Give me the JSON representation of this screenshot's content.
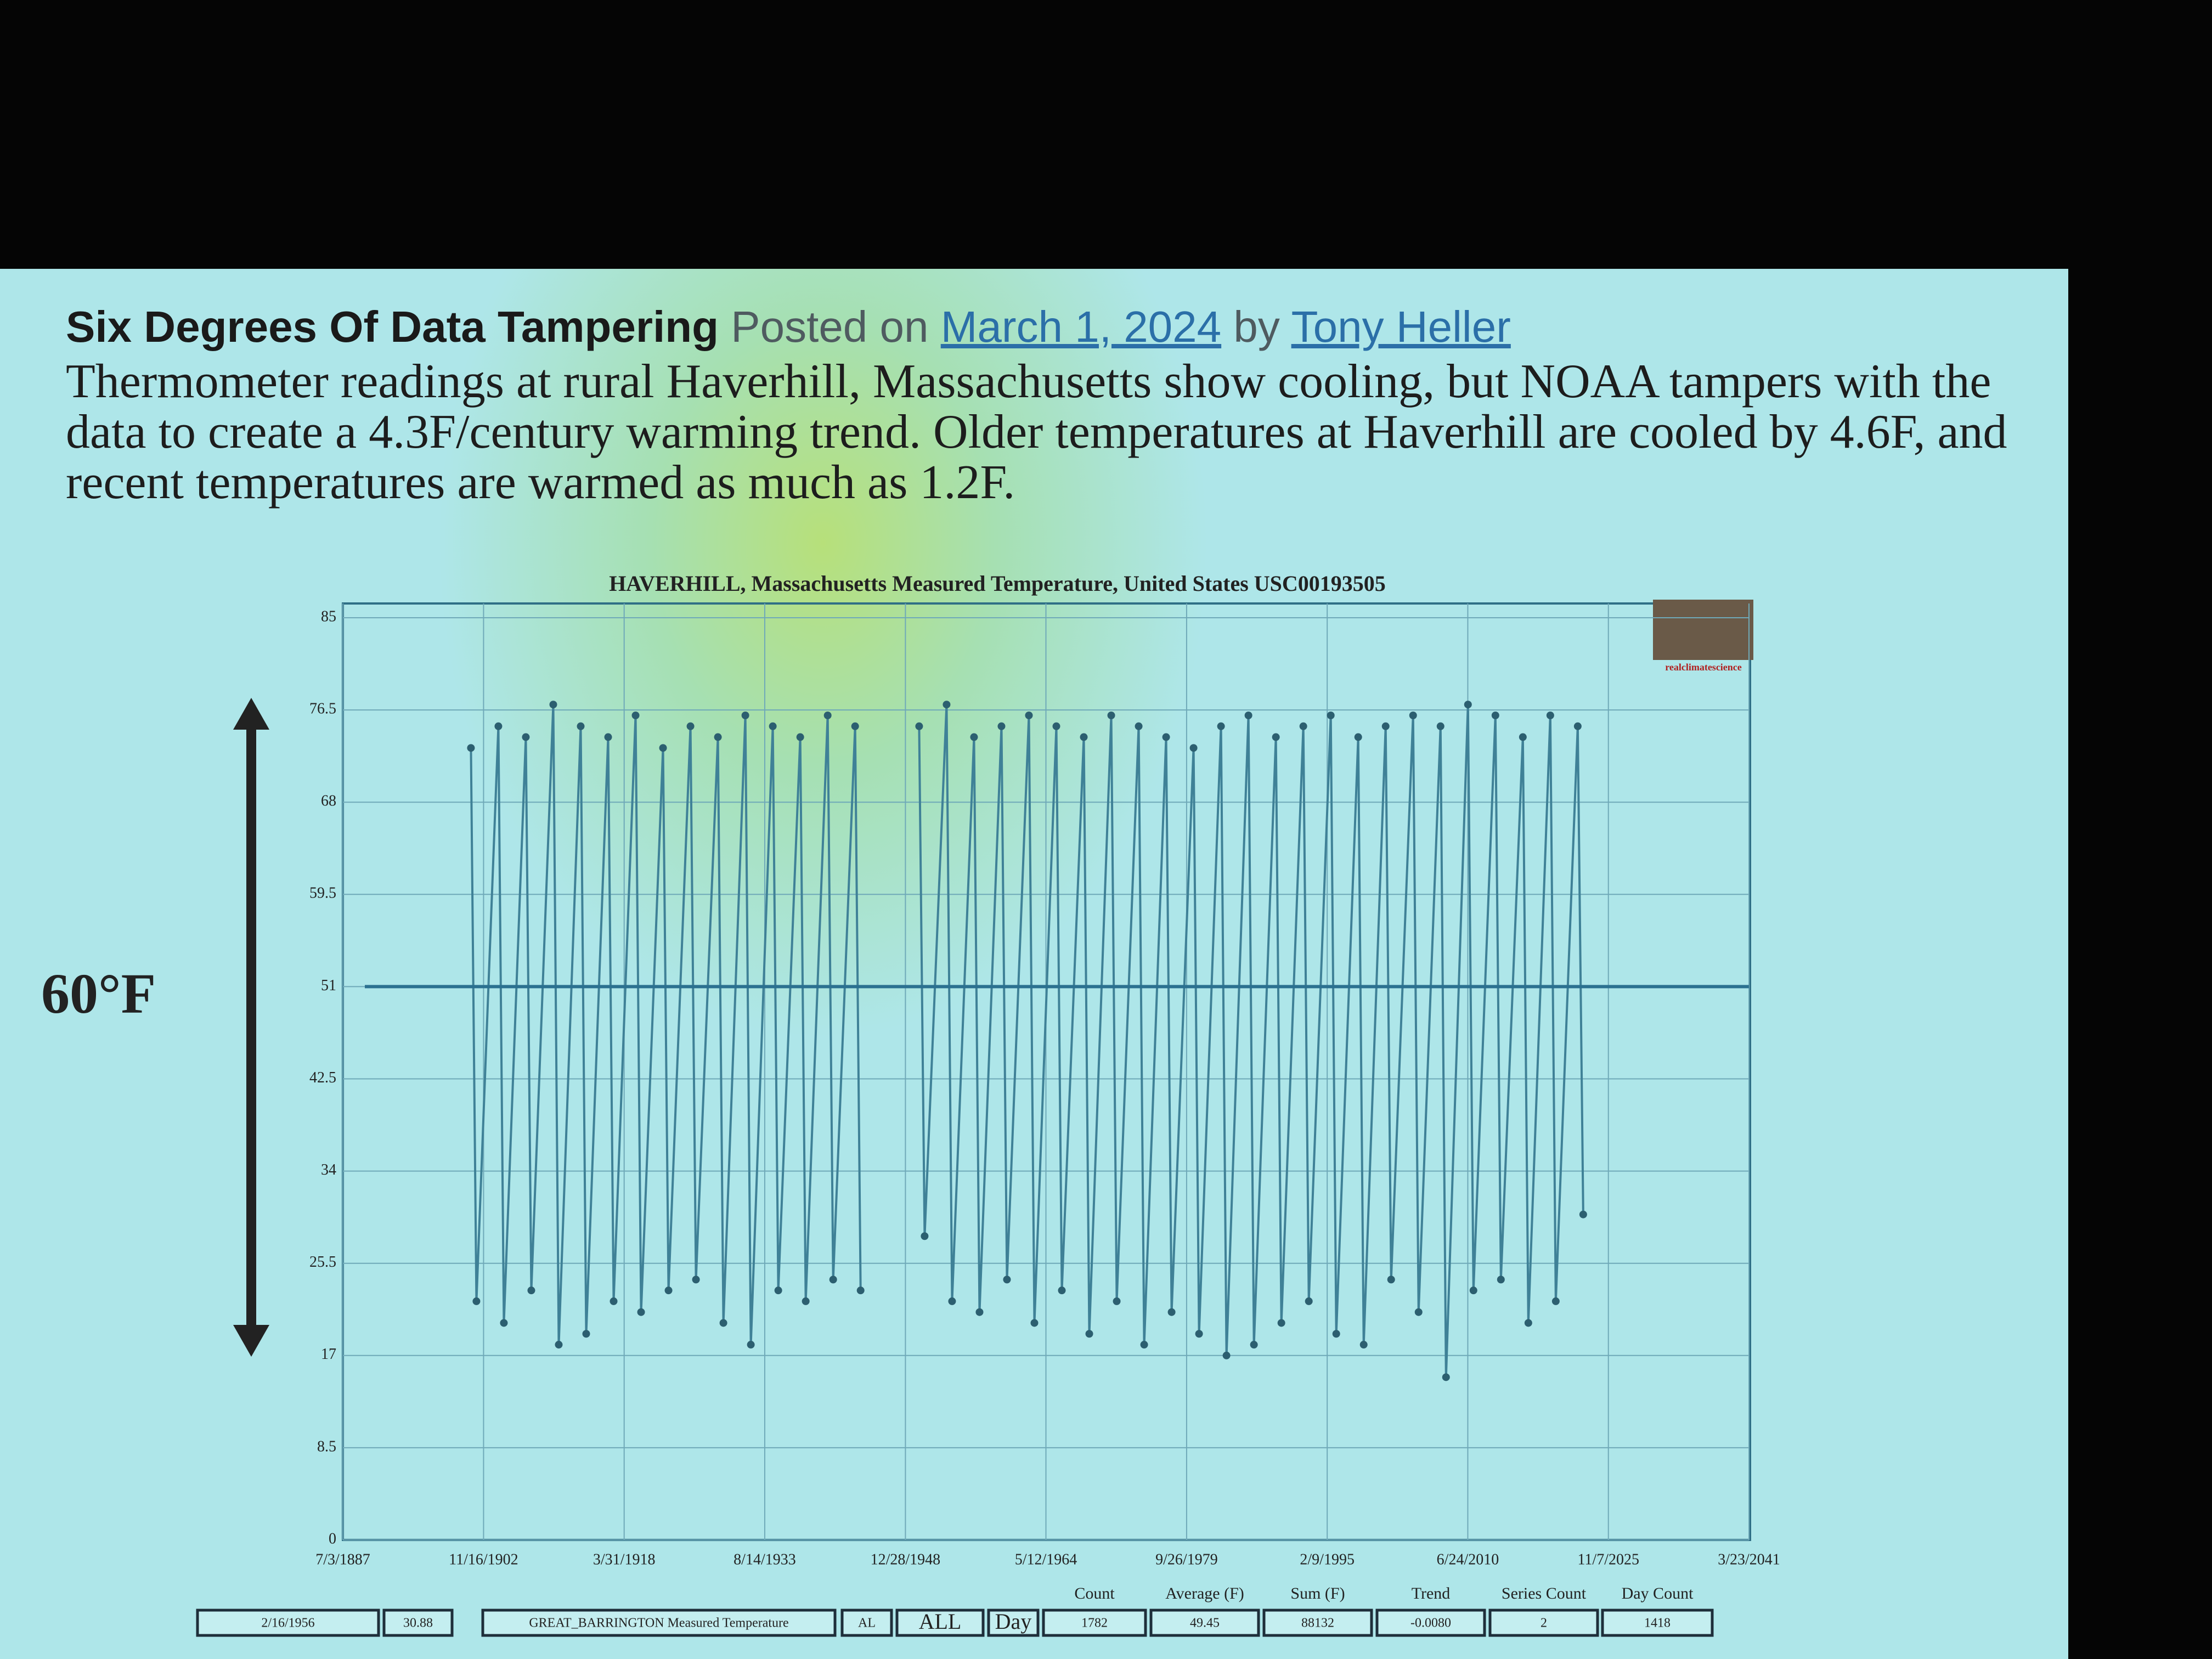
{
  "slide": {
    "title": "Six Degrees Of Data Tampering",
    "posted_on": "Posted on",
    "date": "March 1, 2024",
    "by": "by",
    "author": "Tony Heller",
    "paragraph": "Thermometer readings at rural Haverhill, Massachusetts show cooling, but NOAA tampers with the data to create a 4.3F/century warming trend. Older temperatures at Haverhill are cooled by 4.6F, and recent temperatures are warmed as much as 1.2F.",
    "annotation": "60°F",
    "logo_text": "realclimatescience"
  },
  "chart_data": {
    "type": "line",
    "title": "HAVERHILL, Massachusetts Measured Temperature, United States USC00193505",
    "xlim": [
      1887.5,
      2041.22
    ],
    "xticks": [
      {
        "value": 1887.5,
        "label": "7/3/1887"
      },
      {
        "value": 1902.88,
        "label": "11/16/1902"
      },
      {
        "value": 1918.25,
        "label": "3/31/1918"
      },
      {
        "value": 1933.62,
        "label": "8/14/1933"
      },
      {
        "value": 1949.0,
        "label": "12/28/1948"
      },
      {
        "value": 1964.36,
        "label": "5/12/1964"
      },
      {
        "value": 1979.74,
        "label": "9/26/1979"
      },
      {
        "value": 1995.11,
        "label": "2/9/1995"
      },
      {
        "value": 2010.48,
        "label": "6/24/2010"
      },
      {
        "value": 2025.85,
        "label": "11/7/2025"
      },
      {
        "value": 2041.22,
        "label": "3/23/2041"
      }
    ],
    "ylim": [
      0,
      85
    ],
    "yticks": [
      0,
      8.5,
      17,
      25.5,
      34,
      42.5,
      51,
      59.5,
      68,
      76.5,
      85
    ],
    "grid": true,
    "reference_line": 51,
    "x": [
      1901.5,
      1902.1,
      1904.5,
      1905.1,
      1907.5,
      1908.1,
      1910.5,
      1911.1,
      1913.5,
      1914.1,
      1916.5,
      1917.1,
      1919.5,
      1920.1,
      1922.5,
      1923.1,
      1925.5,
      1926.1,
      1928.5,
      1929.1,
      1931.5,
      1932.1,
      1934.5,
      1935.1,
      1937.5,
      1938.1,
      1940.5,
      1941.1,
      1943.5,
      1944.1,
      1947,
      1950.5,
      1951.1,
      1953.5,
      1954.1,
      1956.5,
      1957.1,
      1959.5,
      1960.1,
      1962.5,
      1963.1,
      1965.5,
      1966.1,
      1968.5,
      1969.1,
      1971.5,
      1972.1,
      1974.5,
      1975.1,
      1977.5,
      1978.1,
      1980.5,
      1981.1,
      1983.5,
      1984.1,
      1986.5,
      1987.1,
      1989.5,
      1990.1,
      1992.5,
      1993.1,
      1995.5,
      1996.1,
      1998.5,
      1999.1,
      2001.5,
      2002.1,
      2004.5,
      2005.1,
      2007.5,
      2008.1,
      2010.5,
      2011.1,
      2013.5,
      2014.1,
      2016.5,
      2017.1,
      2019.5,
      2020.1,
      2022.5,
      2023.1
    ],
    "series": [
      {
        "name": "Measured Temperature",
        "color": "#3f8197",
        "values": [
          73,
          22,
          75,
          20,
          74,
          23,
          77,
          18,
          75,
          19,
          74,
          22,
          76,
          21,
          73,
          23,
          75,
          24,
          74,
          20,
          76,
          18,
          75,
          23,
          74,
          22,
          76,
          24,
          75,
          23,
          null,
          75,
          28,
          77,
          22,
          74,
          21,
          75,
          24,
          76,
          20,
          75,
          23,
          74,
          19,
          76,
          22,
          75,
          18,
          74,
          21,
          73,
          19,
          75,
          17,
          76,
          18,
          74,
          20,
          75,
          22,
          76,
          19,
          74,
          18,
          75,
          24,
          76,
          21,
          75,
          15,
          77,
          23,
          76,
          24,
          74,
          20,
          76,
          22,
          75,
          30
        ]
      }
    ]
  },
  "status_bar": {
    "fields": [
      "2/16/1956",
      "30.88",
      "GREAT_BARRINGTON Measured Temperature",
      "AL",
      "ALL",
      "Day"
    ],
    "stats": [
      {
        "label": "Count",
        "value": "1782"
      },
      {
        "label": "Average (F)",
        "value": "49.45"
      },
      {
        "label": "Sum (F)",
        "value": "88132"
      },
      {
        "label": "Trend",
        "value": "-0.0080"
      },
      {
        "label": "Series Count",
        "value": "2"
      },
      {
        "label": "Day Count",
        "value": "1418"
      }
    ]
  }
}
